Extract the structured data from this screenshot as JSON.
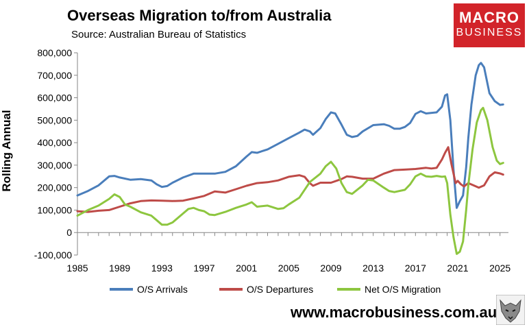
{
  "header": {
    "title": "Overseas Migration to/from Australia",
    "subtitle": "Source: Australian Bureau of Statistics"
  },
  "logo": {
    "line1": "MACRO",
    "line2": "BUSINESS",
    "color": "#d2242a"
  },
  "footer": {
    "website": "www.macrobusiness.com.au"
  },
  "chart_data": {
    "type": "line",
    "ylabel": "Rolling Annual",
    "xlabel": "",
    "xlim": [
      1985,
      2025.8
    ],
    "ylim": [
      -100000,
      800000
    ],
    "ytick_values": [
      -100000,
      0,
      100000,
      200000,
      300000,
      400000,
      500000,
      600000,
      700000,
      800000
    ],
    "ytick_labels": [
      "-100,000",
      "0",
      "100,000",
      "200,000",
      "300,000",
      "400,000",
      "500,000",
      "600,000",
      "700,000",
      "800,000"
    ],
    "xticks": [
      1985,
      1989,
      1993,
      1997,
      2001,
      2005,
      2009,
      2013,
      2017,
      2021,
      2025
    ],
    "grid": false,
    "legend_position": "bottom",
    "series": [
      {
        "name": "O/S Arrivals",
        "color": "#4a7ebb",
        "points": [
          [
            1985,
            165000
          ],
          [
            1986,
            185000
          ],
          [
            1987,
            210000
          ],
          [
            1988,
            250000
          ],
          [
            1988.5,
            252000
          ],
          [
            1989,
            245000
          ],
          [
            1990,
            235000
          ],
          [
            1991,
            238000
          ],
          [
            1992,
            232000
          ],
          [
            1992.5,
            215000
          ],
          [
            1993,
            203000
          ],
          [
            1993.5,
            207000
          ],
          [
            1994,
            222000
          ],
          [
            1995,
            245000
          ],
          [
            1996,
            262000
          ],
          [
            1997,
            262000
          ],
          [
            1998,
            262000
          ],
          [
            1999,
            270000
          ],
          [
            2000,
            295000
          ],
          [
            2001,
            338000
          ],
          [
            2001.5,
            358000
          ],
          [
            2002,
            355000
          ],
          [
            2003,
            370000
          ],
          [
            2004,
            395000
          ],
          [
            2005,
            420000
          ],
          [
            2006,
            445000
          ],
          [
            2006.5,
            458000
          ],
          [
            2007,
            450000
          ],
          [
            2007.3,
            435000
          ],
          [
            2008,
            465000
          ],
          [
            2008.5,
            505000
          ],
          [
            2009,
            535000
          ],
          [
            2009.4,
            530000
          ],
          [
            2010,
            480000
          ],
          [
            2010.5,
            435000
          ],
          [
            2011,
            425000
          ],
          [
            2011.5,
            430000
          ],
          [
            2012,
            450000
          ],
          [
            2013,
            478000
          ],
          [
            2014,
            482000
          ],
          [
            2014.5,
            475000
          ],
          [
            2015,
            462000
          ],
          [
            2015.5,
            462000
          ],
          [
            2016,
            470000
          ],
          [
            2016.5,
            488000
          ],
          [
            2017,
            528000
          ],
          [
            2017.5,
            540000
          ],
          [
            2018,
            530000
          ],
          [
            2019,
            535000
          ],
          [
            2019.5,
            560000
          ],
          [
            2019.8,
            610000
          ],
          [
            2020,
            615000
          ],
          [
            2020.3,
            500000
          ],
          [
            2020.6,
            280000
          ],
          [
            2020.9,
            110000
          ],
          [
            2021.2,
            140000
          ],
          [
            2021.5,
            165000
          ],
          [
            2021.8,
            290000
          ],
          [
            2022,
            420000
          ],
          [
            2022.3,
            570000
          ],
          [
            2022.7,
            700000
          ],
          [
            2023,
            745000
          ],
          [
            2023.2,
            755000
          ],
          [
            2023.5,
            735000
          ],
          [
            2024,
            620000
          ],
          [
            2024.5,
            585000
          ],
          [
            2025,
            568000
          ],
          [
            2025.3,
            570000
          ]
        ]
      },
      {
        "name": "O/S Departures",
        "color": "#be4b48",
        "points": [
          [
            1985,
            95000
          ],
          [
            1986,
            92000
          ],
          [
            1987,
            97000
          ],
          [
            1988,
            100000
          ],
          [
            1989,
            115000
          ],
          [
            1990,
            130000
          ],
          [
            1991,
            140000
          ],
          [
            1992,
            143000
          ],
          [
            1993,
            142000
          ],
          [
            1994,
            140000
          ],
          [
            1995,
            142000
          ],
          [
            1996,
            152000
          ],
          [
            1997,
            163000
          ],
          [
            1998,
            183000
          ],
          [
            1999,
            178000
          ],
          [
            2000,
            193000
          ],
          [
            2001,
            208000
          ],
          [
            2002,
            220000
          ],
          [
            2003,
            224000
          ],
          [
            2004,
            232000
          ],
          [
            2005,
            248000
          ],
          [
            2006,
            255000
          ],
          [
            2006.5,
            248000
          ],
          [
            2007,
            220000
          ],
          [
            2007.3,
            208000
          ],
          [
            2008,
            222000
          ],
          [
            2009,
            222000
          ],
          [
            2010,
            238000
          ],
          [
            2010.5,
            250000
          ],
          [
            2011,
            248000
          ],
          [
            2012,
            240000
          ],
          [
            2013,
            240000
          ],
          [
            2014,
            262000
          ],
          [
            2015,
            278000
          ],
          [
            2016,
            280000
          ],
          [
            2017,
            283000
          ],
          [
            2018,
            288000
          ],
          [
            2018.5,
            285000
          ],
          [
            2019,
            288000
          ],
          [
            2019.5,
            325000
          ],
          [
            2019.8,
            355000
          ],
          [
            2020.1,
            380000
          ],
          [
            2020.4,
            305000
          ],
          [
            2020.8,
            220000
          ],
          [
            2021,
            230000
          ],
          [
            2021.3,
            215000
          ],
          [
            2021.6,
            205000
          ],
          [
            2022,
            220000
          ],
          [
            2022.5,
            210000
          ],
          [
            2023,
            200000
          ],
          [
            2023.5,
            210000
          ],
          [
            2024,
            250000
          ],
          [
            2024.5,
            268000
          ],
          [
            2025,
            263000
          ],
          [
            2025.3,
            258000
          ]
        ]
      },
      {
        "name": "Net O/S Migration",
        "color": "#8dc63f",
        "points": [
          [
            1985,
            75000
          ],
          [
            1986,
            100000
          ],
          [
            1987,
            120000
          ],
          [
            1988,
            150000
          ],
          [
            1988.5,
            170000
          ],
          [
            1989,
            158000
          ],
          [
            1989.5,
            125000
          ],
          [
            1990,
            115000
          ],
          [
            1991,
            90000
          ],
          [
            1992,
            75000
          ],
          [
            1992.5,
            55000
          ],
          [
            1993,
            35000
          ],
          [
            1993.5,
            35000
          ],
          [
            1994,
            45000
          ],
          [
            1995,
            85000
          ],
          [
            1995.5,
            105000
          ],
          [
            1996,
            110000
          ],
          [
            1996.5,
            100000
          ],
          [
            1997,
            95000
          ],
          [
            1997.5,
            80000
          ],
          [
            1998,
            78000
          ],
          [
            1999,
            92000
          ],
          [
            2000,
            110000
          ],
          [
            2001,
            125000
          ],
          [
            2001.5,
            135000
          ],
          [
            2002,
            115000
          ],
          [
            2003,
            120000
          ],
          [
            2004,
            105000
          ],
          [
            2004.5,
            108000
          ],
          [
            2005,
            125000
          ],
          [
            2006,
            155000
          ],
          [
            2007,
            225000
          ],
          [
            2008,
            262000
          ],
          [
            2008.5,
            295000
          ],
          [
            2009,
            315000
          ],
          [
            2009.5,
            285000
          ],
          [
            2010,
            220000
          ],
          [
            2010.5,
            180000
          ],
          [
            2011,
            172000
          ],
          [
            2012,
            210000
          ],
          [
            2012.5,
            235000
          ],
          [
            2013,
            232000
          ],
          [
            2014,
            200000
          ],
          [
            2014.5,
            185000
          ],
          [
            2015,
            180000
          ],
          [
            2016,
            190000
          ],
          [
            2016.5,
            215000
          ],
          [
            2017,
            250000
          ],
          [
            2017.5,
            262000
          ],
          [
            2018,
            250000
          ],
          [
            2018.5,
            248000
          ],
          [
            2019,
            252000
          ],
          [
            2019.5,
            248000
          ],
          [
            2019.8,
            250000
          ],
          [
            2020,
            220000
          ],
          [
            2020.3,
            80000
          ],
          [
            2020.6,
            -20000
          ],
          [
            2020.9,
            -95000
          ],
          [
            2021.2,
            -85000
          ],
          [
            2021.5,
            -40000
          ],
          [
            2021.8,
            100000
          ],
          [
            2022,
            210000
          ],
          [
            2022.4,
            370000
          ],
          [
            2022.8,
            490000
          ],
          [
            2023.2,
            545000
          ],
          [
            2023.4,
            555000
          ],
          [
            2023.8,
            500000
          ],
          [
            2024.3,
            380000
          ],
          [
            2024.7,
            320000
          ],
          [
            2025,
            305000
          ],
          [
            2025.3,
            310000
          ]
        ]
      }
    ]
  }
}
